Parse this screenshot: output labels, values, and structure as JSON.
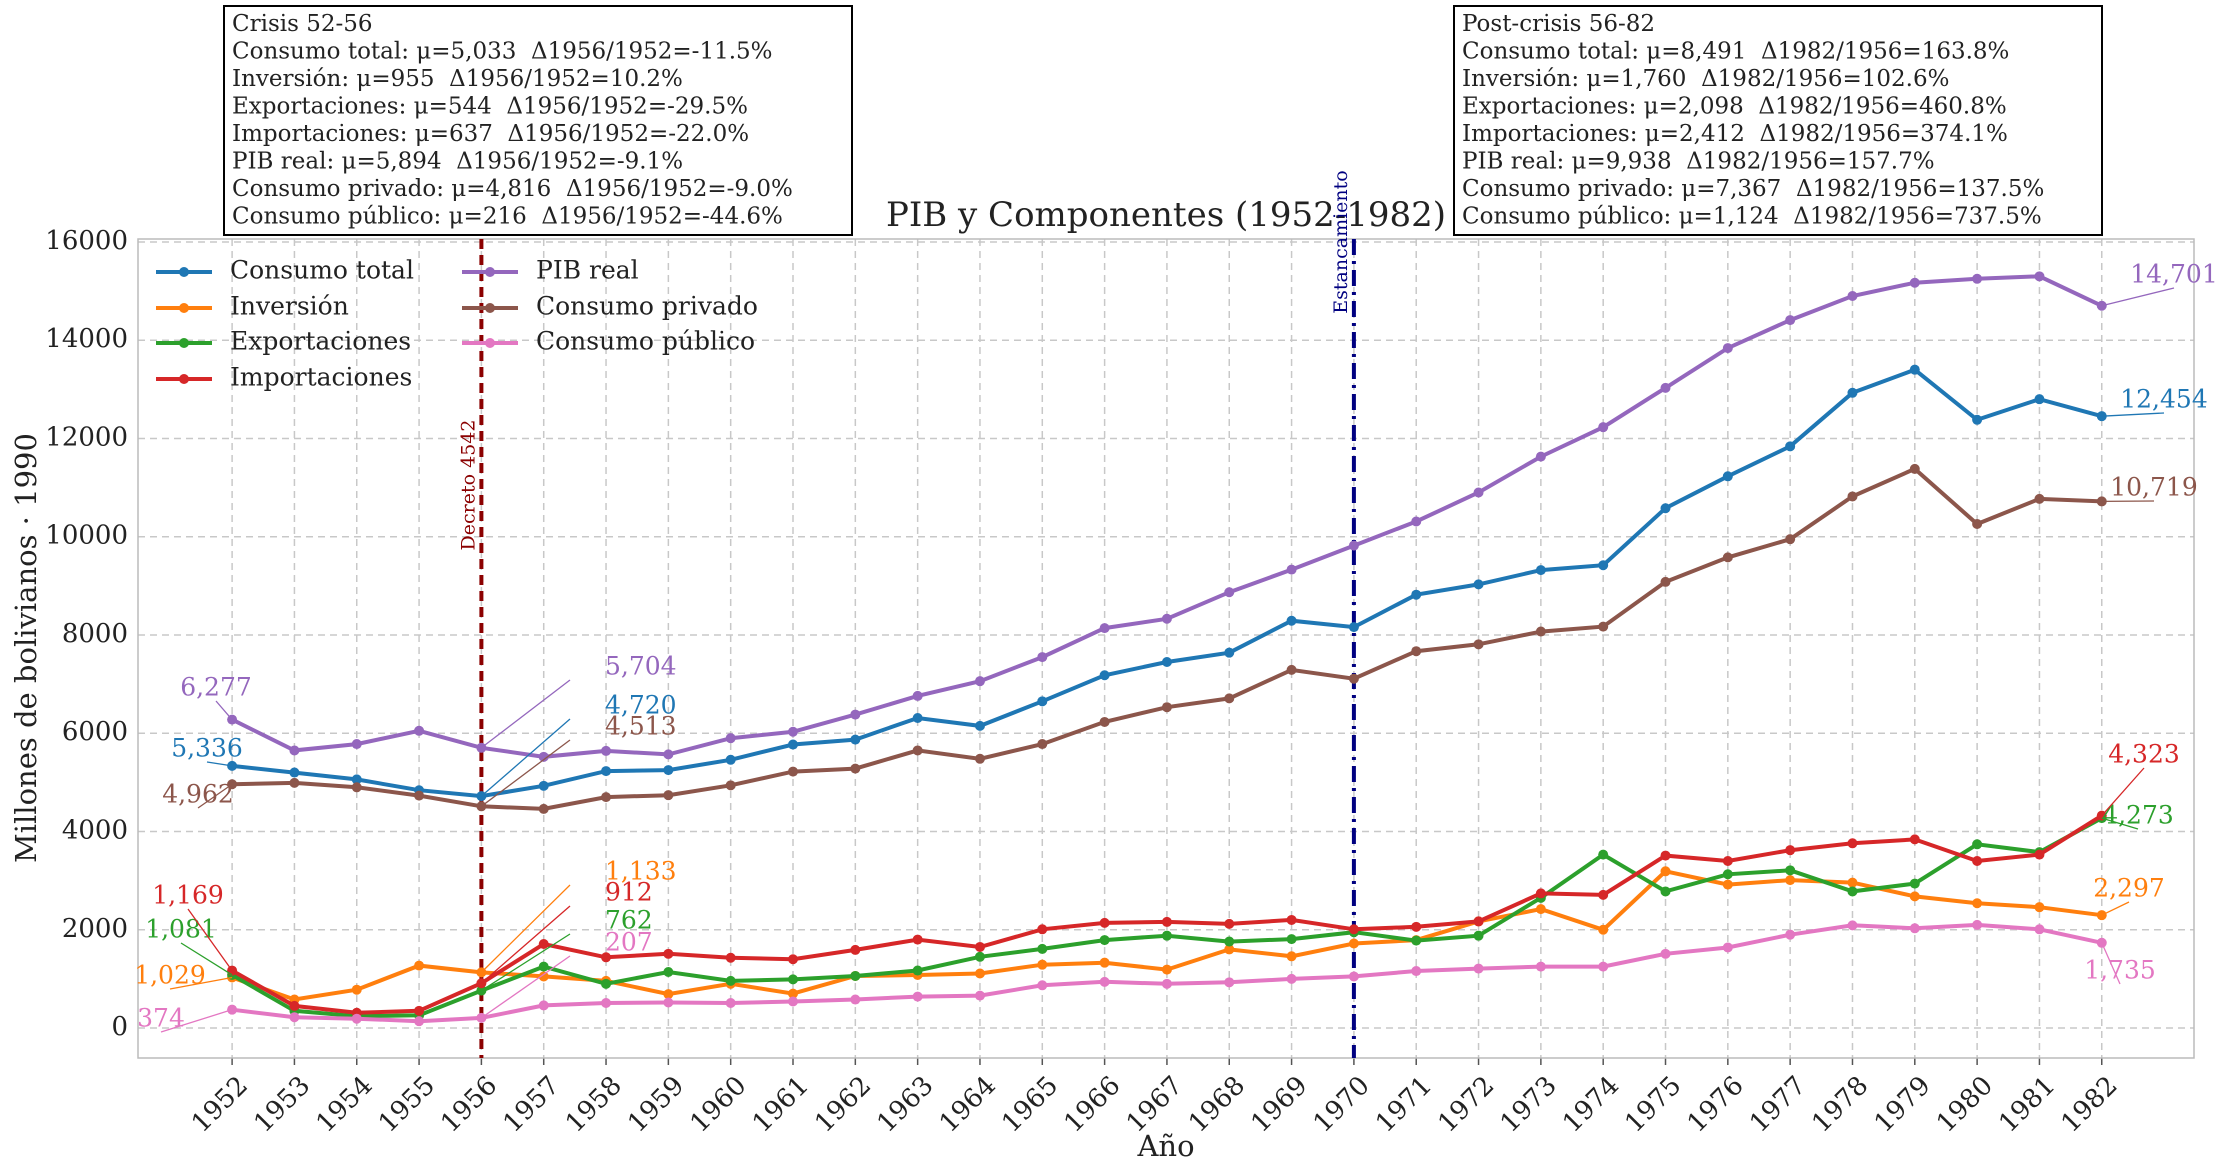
{
  "chart_data": {
    "type": "line",
    "title": "PIB y Componentes (1952-1982)",
    "xlabel": "Año",
    "ylabel": "Millones de bolivianos · 1990",
    "x": [
      1952,
      1953,
      1954,
      1955,
      1956,
      1957,
      1958,
      1959,
      1960,
      1961,
      1962,
      1963,
      1964,
      1965,
      1966,
      1967,
      1968,
      1969,
      1970,
      1971,
      1972,
      1973,
      1974,
      1975,
      1976,
      1977,
      1978,
      1979,
      1980,
      1981,
      1982
    ],
    "xlim": [
      1950.49,
      1983.48
    ],
    "xticks": [
      1952,
      1953,
      1954,
      1955,
      1956,
      1957,
      1958,
      1959,
      1960,
      1961,
      1962,
      1963,
      1964,
      1965,
      1966,
      1967,
      1968,
      1969,
      1970,
      1971,
      1972,
      1973,
      1974,
      1975,
      1976,
      1977,
      1978,
      1979,
      1980,
      1981,
      1982
    ],
    "ylim": [
      -610,
      16060
    ],
    "yticks": [
      0,
      2000,
      4000,
      6000,
      8000,
      10000,
      12000,
      14000,
      16000
    ],
    "grid": true,
    "legend": "upper left",
    "series": [
      {
        "name": "Consumo total",
        "color": "#1f77b4",
        "values": [
          5336,
          5200,
          5060,
          4840,
          4720,
          4930,
          5230,
          5250,
          5460,
          5770,
          5870,
          6310,
          6150,
          6650,
          7180,
          7450,
          7640,
          8290,
          8160,
          8820,
          9030,
          9320,
          9420,
          10580,
          11230,
          11840,
          12930,
          13400,
          12380,
          12800,
          12454
        ],
        "value_labels": [
          "5,336",
          null,
          null,
          null,
          "4,720",
          null,
          null,
          null,
          null,
          null,
          null,
          null,
          null,
          null,
          null,
          null,
          null,
          null,
          null,
          null,
          null,
          null,
          null,
          null,
          null,
          null,
          null,
          null,
          null,
          null,
          "12,454"
        ]
      },
      {
        "name": "Inversión",
        "color": "#ff7f0e",
        "values": [
          1029,
          580,
          780,
          1270,
          1133,
          1050,
          960,
          690,
          900,
          700,
          1060,
          1080,
          1110,
          1290,
          1330,
          1190,
          1600,
          1460,
          1720,
          1790,
          2170,
          2420,
          2000,
          3190,
          2920,
          3010,
          2960,
          2680,
          2540,
          2460,
          2297
        ],
        "value_labels": [
          "1,029",
          null,
          null,
          null,
          "1,133",
          null,
          null,
          null,
          null,
          null,
          null,
          null,
          null,
          null,
          null,
          null,
          null,
          null,
          null,
          null,
          null,
          null,
          null,
          null,
          null,
          null,
          null,
          null,
          null,
          null,
          "2,297"
        ]
      },
      {
        "name": "Exportaciones",
        "color": "#2ca02c",
        "values": [
          1081,
          350,
          240,
          260,
          762,
          1250,
          900,
          1140,
          960,
          990,
          1060,
          1170,
          1450,
          1610,
          1790,
          1880,
          1760,
          1810,
          1950,
          1780,
          1880,
          2650,
          3530,
          2780,
          3130,
          3210,
          2780,
          2940,
          3740,
          3580,
          4273
        ],
        "value_labels": [
          "1,081",
          null,
          null,
          null,
          "762",
          null,
          null,
          null,
          null,
          null,
          null,
          null,
          null,
          null,
          null,
          null,
          null,
          null,
          null,
          null,
          null,
          null,
          null,
          null,
          null,
          null,
          null,
          null,
          null,
          null,
          "4,273"
        ]
      },
      {
        "name": "Importaciones",
        "color": "#d62728",
        "values": [
          1169,
          450,
          310,
          350,
          912,
          1710,
          1440,
          1510,
          1430,
          1400,
          1590,
          1800,
          1650,
          2010,
          2140,
          2160,
          2120,
          2200,
          2010,
          2060,
          2170,
          2740,
          2710,
          3510,
          3400,
          3620,
          3760,
          3840,
          3400,
          3530,
          4323
        ],
        "value_labels": [
          "1,169",
          null,
          null,
          null,
          "912",
          null,
          null,
          null,
          null,
          null,
          null,
          null,
          null,
          null,
          null,
          null,
          null,
          null,
          null,
          null,
          null,
          null,
          null,
          null,
          null,
          null,
          null,
          null,
          null,
          null,
          "4,323"
        ]
      },
      {
        "name": "PIB real",
        "color": "#9467bd",
        "values": [
          6277,
          5650,
          5780,
          6050,
          5704,
          5520,
          5640,
          5570,
          5900,
          6030,
          6380,
          6760,
          7060,
          7550,
          8140,
          8330,
          8870,
          9330,
          9820,
          10310,
          10900,
          11630,
          12230,
          13030,
          13840,
          14410,
          14900,
          15170,
          15250,
          15300,
          14701
        ],
        "value_labels": [
          "6,277",
          null,
          null,
          null,
          "5,704",
          null,
          null,
          null,
          null,
          null,
          null,
          null,
          null,
          null,
          null,
          null,
          null,
          null,
          null,
          null,
          null,
          null,
          null,
          null,
          null,
          null,
          null,
          null,
          null,
          null,
          "14,701"
        ]
      },
      {
        "name": "Consumo privado",
        "color": "#8c564b",
        "values": [
          4962,
          4990,
          4900,
          4730,
          4513,
          4460,
          4700,
          4740,
          4940,
          5220,
          5280,
          5650,
          5480,
          5780,
          6230,
          6530,
          6710,
          7290,
          7110,
          7670,
          7810,
          8070,
          8170,
          9080,
          9580,
          9950,
          10820,
          11380,
          10260,
          10770,
          10719
        ],
        "value_labels": [
          "4,962",
          null,
          null,
          null,
          "4,513",
          null,
          null,
          null,
          null,
          null,
          null,
          null,
          null,
          null,
          null,
          null,
          null,
          null,
          null,
          null,
          null,
          null,
          null,
          null,
          null,
          null,
          null,
          null,
          null,
          null,
          "10,719"
        ]
      },
      {
        "name": "Consumo público",
        "color": "#e377c2",
        "values": [
          374,
          220,
          190,
          140,
          207,
          460,
          510,
          520,
          510,
          540,
          580,
          640,
          660,
          870,
          940,
          900,
          930,
          1000,
          1050,
          1160,
          1210,
          1250,
          1250,
          1510,
          1640,
          1900,
          2090,
          2030,
          2100,
          2010,
          1735
        ],
        "value_labels": [
          "374",
          null,
          null,
          null,
          "207",
          null,
          null,
          null,
          null,
          null,
          null,
          null,
          null,
          null,
          null,
          null,
          null,
          null,
          null,
          null,
          null,
          null,
          null,
          null,
          null,
          null,
          null,
          null,
          null,
          null,
          "1,735"
        ]
      }
    ],
    "vlines": [
      {
        "x": 1956,
        "label": "Decreto 4542",
        "color": "#8b0000"
      },
      {
        "x": 1970,
        "label": "Estancamiento",
        "color": "#000080"
      }
    ],
    "boxes": [
      {
        "lines": [
          "Crisis 52-56",
          "Consumo total: μ=5,033  Δ1956/1952=-11.5%",
          "Inversión: μ=955  Δ1956/1952=10.2%",
          "Exportaciones: μ=544  Δ1956/1952=-29.5%",
          "Importaciones: μ=637  Δ1956/1952=-22.0%",
          "PIB real: μ=5,894  Δ1956/1952=-9.1%",
          "Consumo privado: μ=4,816  Δ1956/1952=-9.0%",
          "Consumo público: μ=216  Δ1956/1952=-44.6%"
        ]
      },
      {
        "lines": [
          "Post-crisis 56-82",
          "Consumo total: μ=8,491  Δ1982/1956=163.8%",
          "Inversión: μ=1,760  Δ1982/1956=102.6%",
          "Exportaciones: μ=2,098  Δ1982/1956=460.8%",
          "Importaciones: μ=2,412  Δ1982/1956=374.1%",
          "PIB real: μ=9,938  Δ1982/1956=157.7%",
          "Consumo privado: μ=7,367  Δ1982/1956=137.5%",
          "Consumo público: μ=1,124  Δ1982/1956=737.5%"
        ]
      }
    ]
  }
}
